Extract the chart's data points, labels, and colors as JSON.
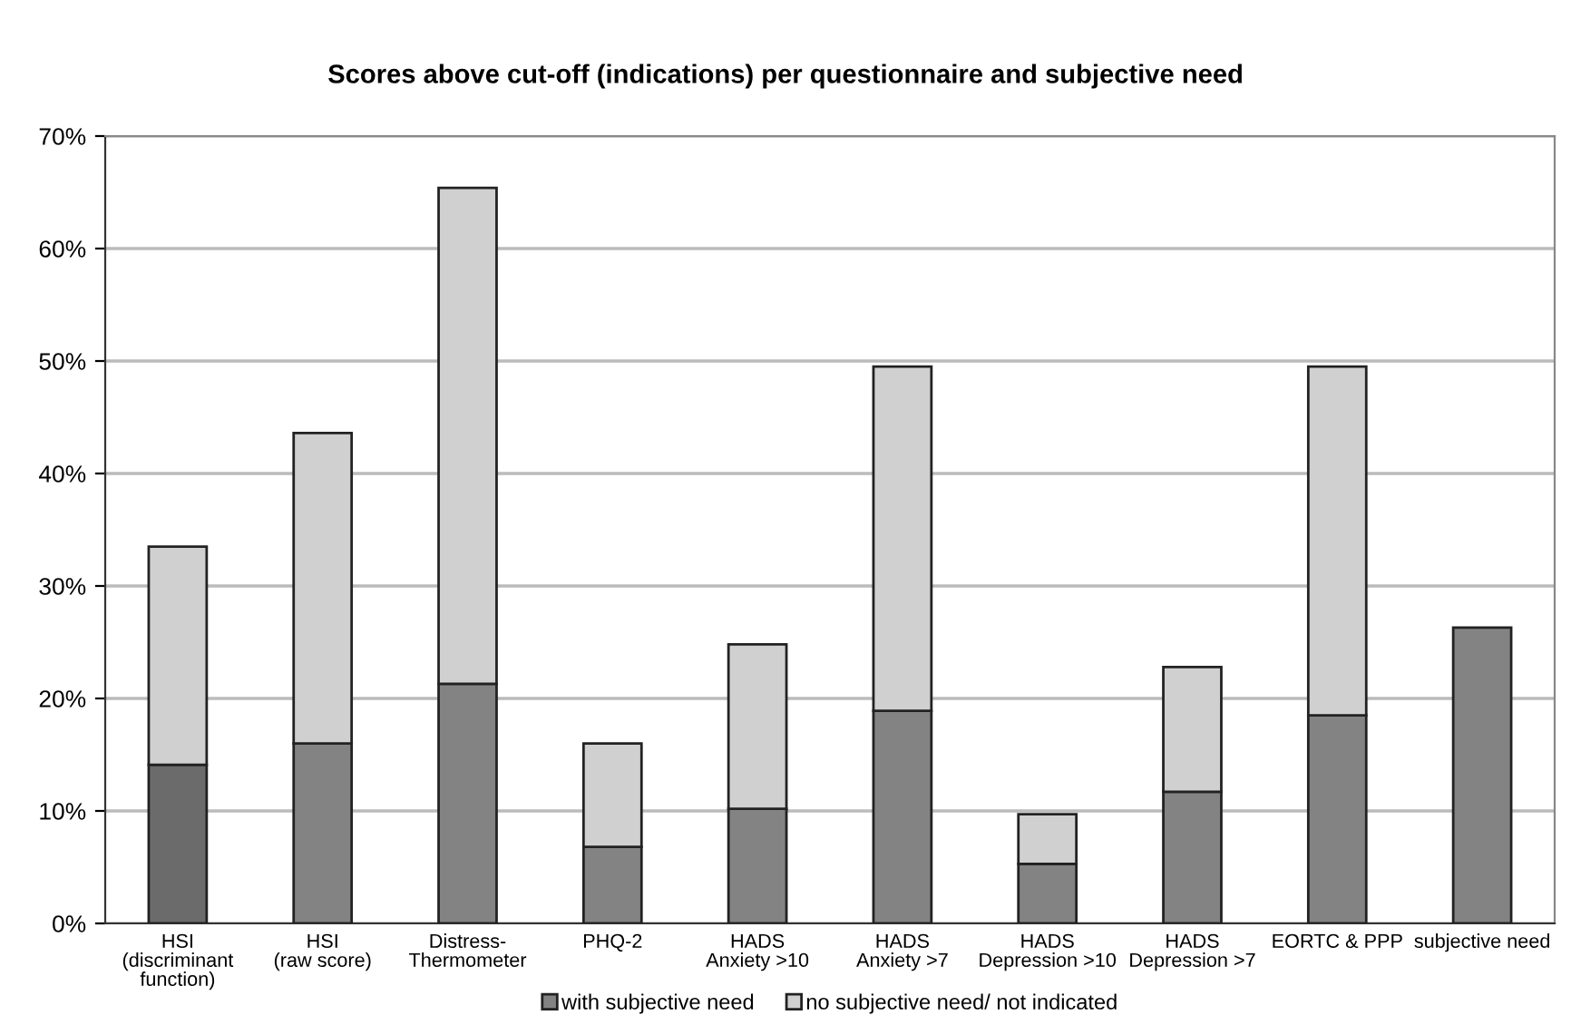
{
  "chart_data": {
    "type": "bar",
    "title": "Scores above cut-off (indications) per questionnaire and subjective need",
    "categories": [
      "HSI\n(discriminant\nfunction)",
      "HSI\n(raw score)",
      "Distress-\nThermometer",
      "PHQ-2",
      "HADS\nAnxiety >10",
      "HADS\nAnxiety >7",
      "HADS\nDepression >10",
      "HADS\nDepression >7",
      "EORTC & PPP",
      "subjective need"
    ],
    "stacked": true,
    "series": [
      {
        "name": "with subjective need",
        "color": "#838383",
        "colors": [
          "#6b6b6b",
          "#838383",
          "#838383",
          "#838383",
          "#838383",
          "#838383",
          "#838383",
          "#838383",
          "#838383",
          "#838383"
        ],
        "values": [
          14.1,
          16.0,
          21.3,
          6.8,
          10.2,
          18.9,
          5.3,
          11.7,
          18.5,
          26.3
        ]
      },
      {
        "name": "no subjective need/ not indicated",
        "color": "#d0d0d0",
        "values": [
          19.4,
          27.6,
          44.1,
          9.2,
          14.6,
          30.6,
          4.4,
          11.1,
          31.0,
          null
        ]
      }
    ],
    "ylim": [
      0,
      70
    ],
    "yticks": [
      {
        "value": 0,
        "label": "0%"
      },
      {
        "value": 10,
        "label": "10%"
      },
      {
        "value": 20,
        "label": "20%"
      },
      {
        "value": 30,
        "label": "30%"
      },
      {
        "value": 40,
        "label": "40%"
      },
      {
        "value": 50,
        "label": "50%"
      },
      {
        "value": 60,
        "label": "60%"
      },
      {
        "value": 70,
        "label": "70%"
      }
    ],
    "grid": "y",
    "legend": "bottom"
  }
}
